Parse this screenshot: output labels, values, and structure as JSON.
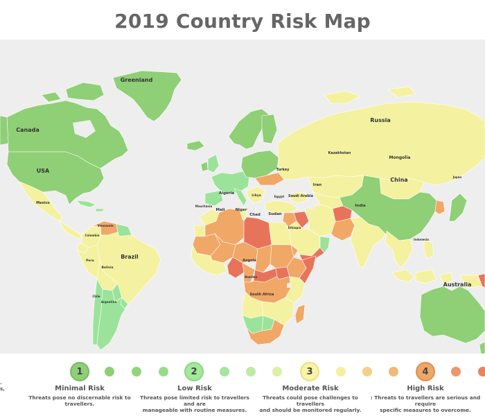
{
  "title": "2019 Country Risk Map",
  "colors": {
    "ocean": "#eeeeee",
    "level1": "#8fcf76",
    "level2": "#9be39a",
    "level3": "#f4f2a0",
    "level4": "#f1a766",
    "level5": "#e8735b",
    "border": "#ffffff"
  },
  "map_labels": {
    "greenland": "Greenland",
    "canada": "Canada",
    "usa": "USA",
    "russia": "Russia",
    "mongolia": "Mongolia",
    "kazakhstan": "Kazakhstan",
    "china": "China",
    "india": "India",
    "iran": "Iran",
    "turkey": "Turkey",
    "saudi_arabia": "Saudi Arabia",
    "algeria": "Algeria",
    "libya": "Libya",
    "egypt": "Egypt",
    "mali": "Mali",
    "niger": "Niger",
    "chad": "Chad",
    "sudan": "Sudan",
    "mauritania": "Mauritania",
    "ethiopia": "Ethiopia",
    "angola": "Angola",
    "namibia": "Namibia",
    "south_africa": "South Africa",
    "brazil": "Brazil",
    "mexico": "Mexico",
    "peru": "Peru",
    "bolivia": "Bolivia",
    "argentina": "Argentina",
    "colombia": "Colombia",
    "venezuela": "Venezuela",
    "chile": "Chile",
    "australia": "Australia",
    "indonesia": "Indonesia",
    "japan": "Japan"
  },
  "legend": {
    "levels": [
      {
        "number": "1",
        "name": "Minimal Risk",
        "desc": [
          "Threats pose no discernable risk to travellers."
        ]
      },
      {
        "number": "2",
        "name": "Low Risk",
        "desc": [
          "Threats pose limited risk to travellers and are",
          "manageable with routine measures."
        ]
      },
      {
        "number": "3",
        "name": "Moderate Risk",
        "desc": [
          "Threats could pose challenges to travellers",
          "and should be monitored regularly."
        ]
      },
      {
        "number": "4",
        "name": "High Risk",
        "desc": [
          ": Threats to travellers are serious and require",
          "specific measures to overcome."
        ]
      }
    ],
    "edge_text": [
      ".",
      "s,"
    ]
  }
}
